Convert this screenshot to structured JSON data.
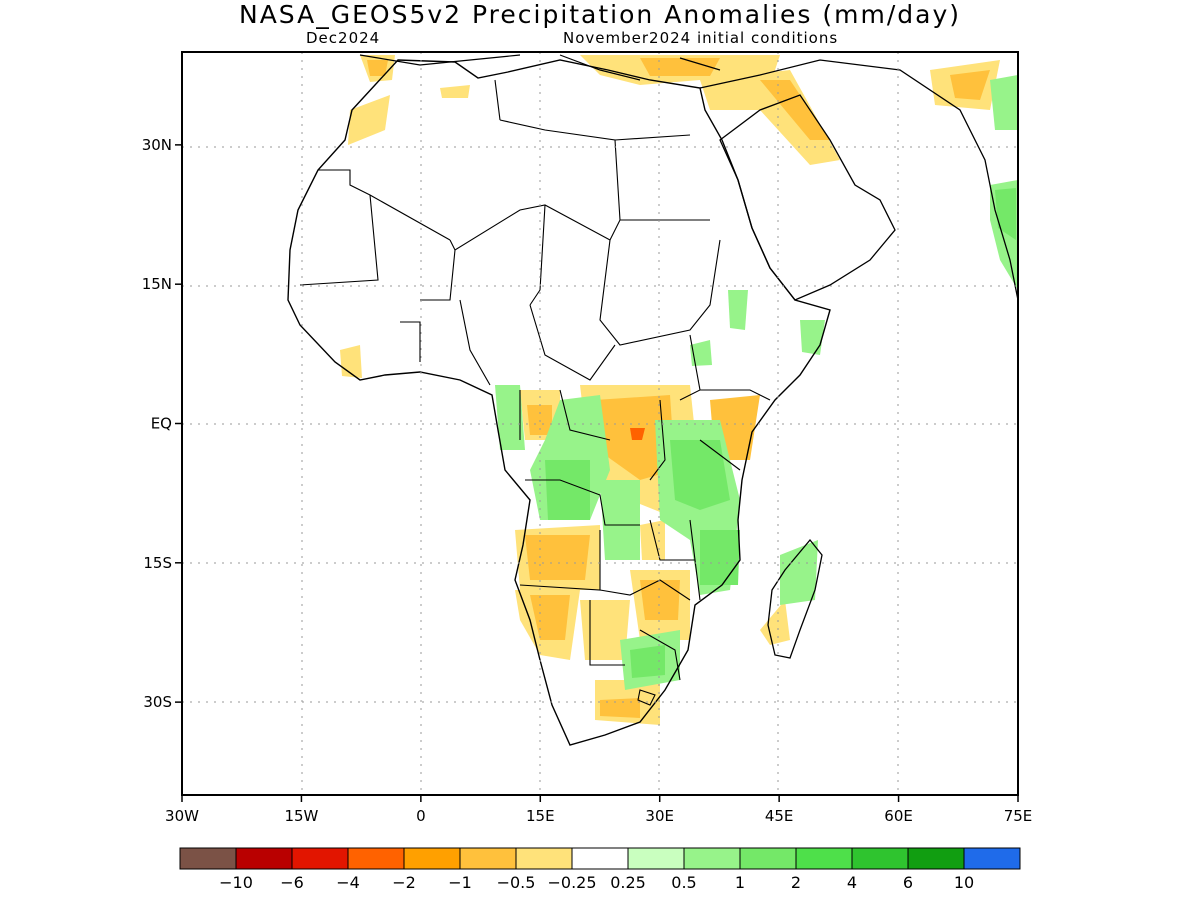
{
  "header": {
    "title": "NASA_GEOS5v2 Precipitation Anomalies (mm/day)",
    "valid_month": "Dec2024",
    "initial_conditions": "November2024 initial conditions"
  },
  "map": {
    "region": "Africa",
    "lon_range": [
      -30,
      75
    ],
    "lat_range": [
      -40,
      40
    ],
    "lon_ticks": [
      {
        "value": -30,
        "label": "30W"
      },
      {
        "value": -15,
        "label": "15W"
      },
      {
        "value": 0,
        "label": "0"
      },
      {
        "value": 15,
        "label": "15E"
      },
      {
        "value": 30,
        "label": "30E"
      },
      {
        "value": 45,
        "label": "45E"
      },
      {
        "value": 60,
        "label": "60E"
      },
      {
        "value": 75,
        "label": "75E"
      }
    ],
    "lat_ticks": [
      {
        "value": 30,
        "label": "30N"
      },
      {
        "value": 15,
        "label": "15N"
      },
      {
        "value": 0,
        "label": "EQ"
      },
      {
        "value": -15,
        "label": "15S"
      },
      {
        "value": -30,
        "label": "30S"
      }
    ],
    "grid": "dotted"
  },
  "colorbar": {
    "colors": [
      "#7b5246",
      "#b90000",
      "#e21500",
      "#ff6200",
      "#ffa000",
      "#ffc13c",
      "#ffe27a",
      "#ffffff",
      "#c9ffbf",
      "#97f38a",
      "#74e868",
      "#4ee04a",
      "#2fc42f",
      "#119e11",
      "#1f6bea"
    ],
    "labels": [
      "−10",
      "−6",
      "−4",
      "−2",
      "−1",
      "−0.5",
      "−0.25",
      "0.25",
      "0.5",
      "1",
      "2",
      "4",
      "6",
      "10"
    ]
  }
}
